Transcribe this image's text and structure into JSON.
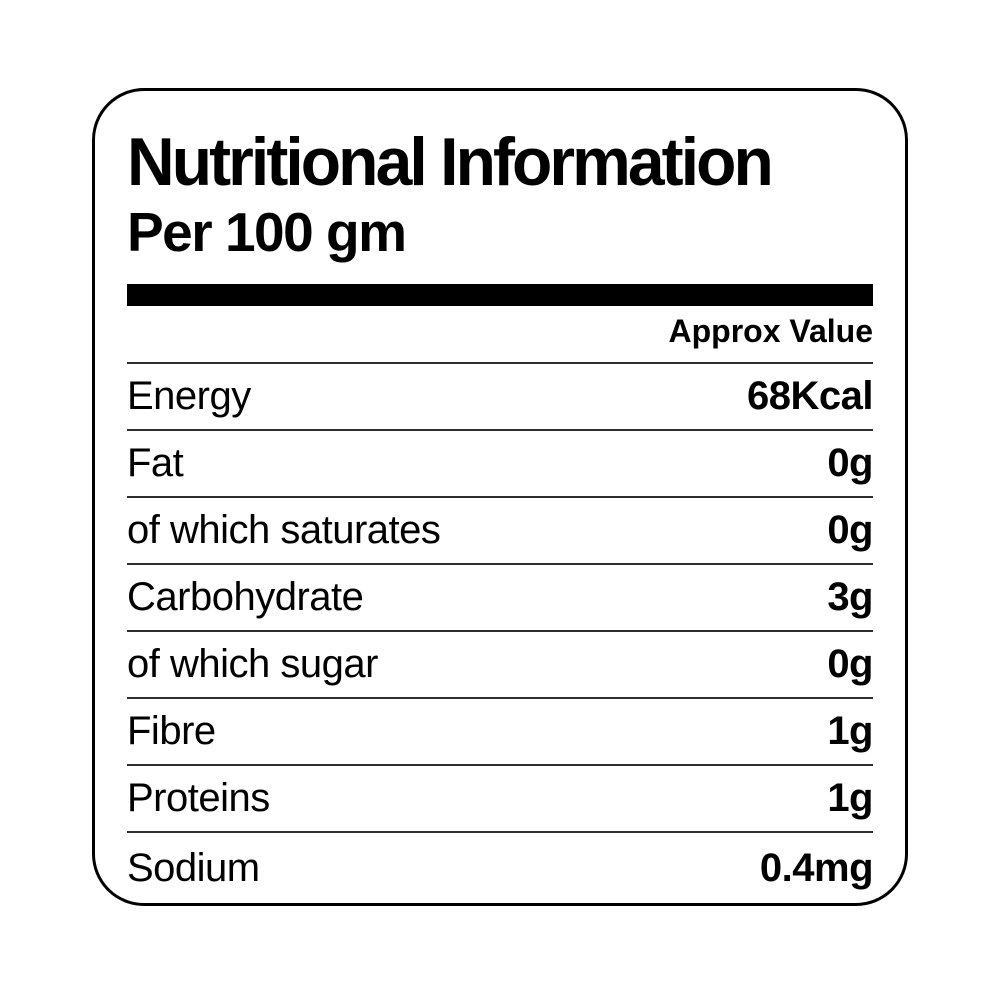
{
  "label": {
    "title": "Nutritional Information",
    "subtitle": "Per 100 gm",
    "value_column_header": "Approx Value",
    "rows": [
      {
        "name": "Energy",
        "value": "68Kcal"
      },
      {
        "name": "Fat",
        "value": "0g"
      },
      {
        "name": "of which saturates",
        "value": "0g"
      },
      {
        "name": "Carbohydrate",
        "value": "3g"
      },
      {
        "name": "of which sugar",
        "value": "0g"
      },
      {
        "name": "Fibre",
        "value": "1g"
      },
      {
        "name": "Proteins",
        "value": "1g"
      },
      {
        "name": "Sodium",
        "value": "0.4mg"
      }
    ],
    "colors": {
      "text": "#000000",
      "border": "#000000",
      "divider": "#2e2e2e",
      "bar": "#000000",
      "background": "#ffffff"
    }
  }
}
